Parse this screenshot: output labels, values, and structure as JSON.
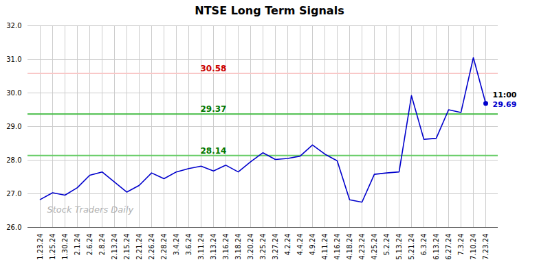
{
  "chart_data": {
    "type": "line",
    "title": "NTSE Long Term Signals",
    "watermark": "Stock Traders Daily",
    "categories": [
      "1.23.24",
      "1.25.24",
      "1.30.24",
      "2.1.24",
      "2.6.24",
      "2.8.24",
      "2.13.24",
      "2.15.24",
      "2.21.24",
      "2.26.24",
      "2.28.24",
      "3.4.24",
      "3.6.24",
      "3.11.24",
      "3.13.24",
      "3.16.24",
      "3.18.24",
      "3.20.24",
      "3.25.24",
      "3.27.24",
      "4.2.24",
      "4.4.24",
      "4.9.24",
      "4.11.24",
      "4.16.24",
      "4.18.24",
      "4.23.24",
      "4.25.24",
      "5.2.24",
      "5.13.24",
      "5.21.24",
      "6.3.24",
      "6.13.24",
      "6.27.24",
      "7.3.24",
      "7.10.24",
      "7.23.24"
    ],
    "values": [
      26.83,
      27.03,
      26.96,
      27.18,
      27.55,
      27.65,
      27.35,
      27.05,
      27.25,
      27.62,
      27.45,
      27.65,
      27.75,
      27.82,
      27.68,
      27.85,
      27.65,
      27.95,
      28.22,
      28.02,
      28.05,
      28.12,
      28.45,
      28.18,
      27.98,
      26.82,
      26.75,
      27.58,
      27.62,
      27.65,
      29.92,
      28.62,
      28.65,
      29.5,
      29.42,
      31.05,
      29.69
    ],
    "color": "#0000cc",
    "last_point": {
      "label": "11:00",
      "value_label": "29.69",
      "color": "#0000cc"
    },
    "hlines": [
      {
        "value": 30.58,
        "color": "#f9c8c8",
        "label_color": "#cc0000"
      },
      {
        "value": 29.37,
        "color": "#44bb44",
        "label_color": "#007700"
      },
      {
        "value": 28.14,
        "color": "#66cc66",
        "label_color": "#007700"
      }
    ],
    "ylim": [
      26,
      32
    ],
    "yticks": [
      26,
      27,
      28,
      29,
      30,
      31,
      32
    ],
    "grid": true
  }
}
